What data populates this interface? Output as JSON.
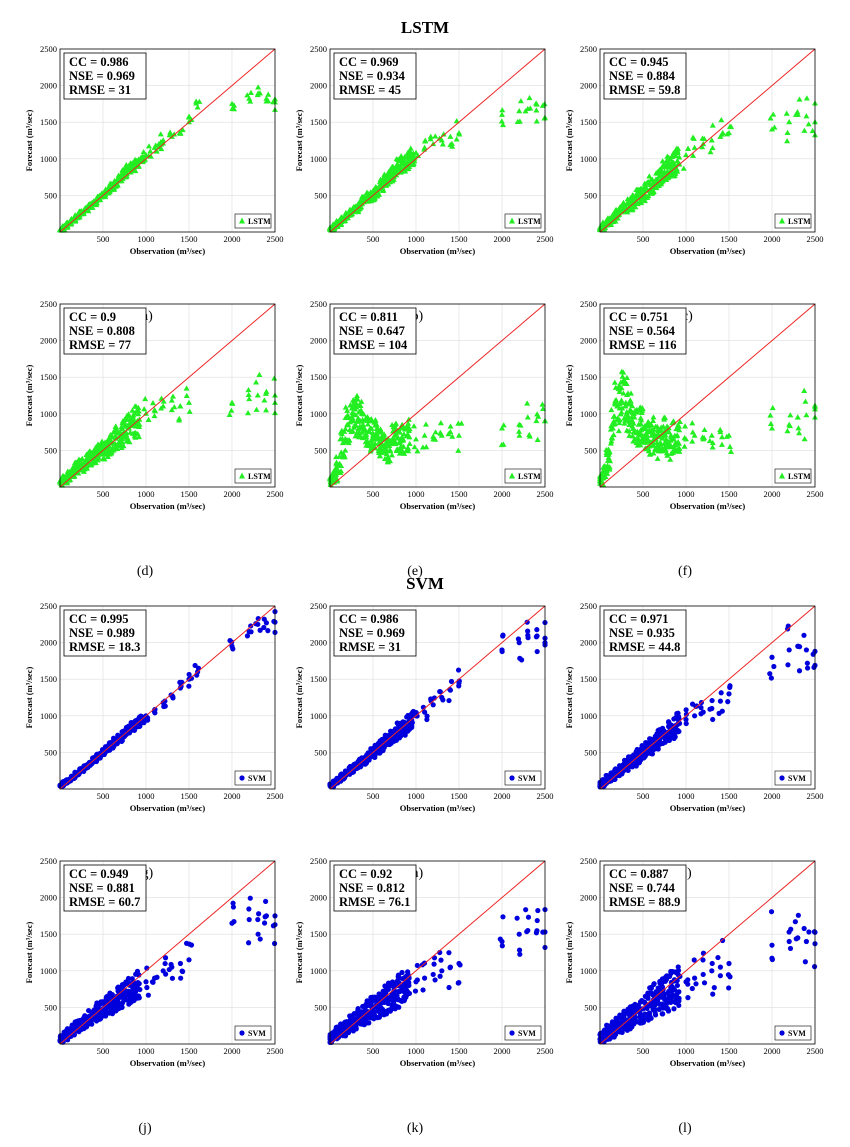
{
  "sections": [
    {
      "title": "LSTM"
    },
    {
      "title": "SVM"
    }
  ],
  "axes": {
    "xlabel": "Observation (m³/sec)",
    "ylabel": "Forecast (m³/sec)",
    "xticks": [
      "500",
      "1000",
      "1500",
      "2000",
      "2500"
    ],
    "yticks": [
      "500",
      "1000",
      "1500",
      "2000",
      "2500"
    ]
  },
  "colors": {
    "lstm": "#22ee22",
    "svm": "#0000dd",
    "line": "#ee2222",
    "grid": "#dddddd"
  },
  "chart_data": [
    {
      "type": "scatter",
      "caption": "(a)",
      "model": "LSTM",
      "legend": "LSTM",
      "legend_loc": "bottom-right",
      "marker": "triangle",
      "stats": [
        "CC = 0.986",
        "NSE = 0.969",
        "RMSE = 31"
      ],
      "xlim": [
        0,
        2500
      ],
      "ylim": [
        0,
        2500
      ],
      "grid": true,
      "series": [
        {
          "name": "LSTM",
          "x": [
            20,
            60,
            100,
            150,
            200,
            250,
            300,
            350,
            400,
            450,
            500,
            550,
            600,
            650,
            700,
            750,
            800,
            850,
            900,
            950,
            1000,
            1050,
            1100,
            1150,
            1200,
            1300,
            1400,
            1500,
            1600,
            2000,
            2200,
            2300,
            2400,
            2500
          ],
          "y": [
            30,
            70,
            110,
            160,
            210,
            260,
            310,
            360,
            400,
            460,
            500,
            560,
            620,
            660,
            740,
            800,
            860,
            880,
            950,
            980,
            1050,
            1100,
            1150,
            1200,
            1250,
            1300,
            1350,
            1500,
            1700,
            1750,
            1820,
            1870,
            1820,
            1770
          ]
        }
      ]
    },
    {
      "type": "scatter",
      "caption": "(b)",
      "model": "LSTM",
      "legend": "LSTM",
      "legend_loc": "bottom-right",
      "marker": "triangle",
      "stats": [
        "CC = 0.969",
        "NSE = 0.934",
        "RMSE = 45"
      ],
      "xlim": [
        0,
        2500
      ],
      "ylim": [
        0,
        2500
      ],
      "grid": true,
      "series": [
        {
          "name": "LSTM",
          "x": [
            20,
            60,
            100,
            150,
            200,
            250,
            300,
            350,
            400,
            450,
            500,
            550,
            600,
            650,
            700,
            750,
            800,
            850,
            900,
            950,
            1000,
            1100,
            1200,
            1300,
            1400,
            1500,
            2000,
            2200,
            2300,
            2400,
            2500
          ],
          "y": [
            40,
            80,
            120,
            170,
            220,
            270,
            320,
            360,
            420,
            470,
            500,
            560,
            640,
            700,
            760,
            800,
            880,
            920,
            960,
            1020,
            1080,
            1150,
            1200,
            1250,
            1300,
            1350,
            1600,
            1650,
            1680,
            1660,
            1560
          ]
        }
      ]
    },
    {
      "type": "scatter",
      "caption": "(c)",
      "model": "LSTM",
      "legend": "LSTM",
      "legend_loc": "bottom-right",
      "marker": "triangle",
      "stats": [
        "CC = 0.945",
        "NSE = 0.884",
        "RMSE = 59.8"
      ],
      "xlim": [
        0,
        2500
      ],
      "ylim": [
        0,
        2500
      ],
      "grid": true,
      "series": [
        {
          "name": "LSTM",
          "x": [
            20,
            60,
            100,
            150,
            200,
            250,
            300,
            350,
            400,
            450,
            500,
            550,
            600,
            650,
            700,
            750,
            800,
            850,
            900,
            1000,
            1100,
            1200,
            1300,
            1400,
            1500,
            2000,
            2200,
            2300,
            2400,
            2500
          ],
          "y": [
            50,
            90,
            140,
            190,
            240,
            290,
            330,
            380,
            420,
            480,
            520,
            570,
            640,
            700,
            760,
            820,
            880,
            920,
            970,
            1050,
            1150,
            1200,
            1250,
            1300,
            1350,
            1400,
            1500,
            1600,
            1580,
            1500
          ]
        }
      ]
    },
    {
      "type": "scatter",
      "caption": "(d)",
      "model": "LSTM",
      "legend": "LSTM",
      "legend_loc": "bottom-right",
      "marker": "triangle",
      "stats": [
        "CC = 0.9",
        "NSE = 0.808",
        "RMSE = 77"
      ],
      "xlim": [
        0,
        2500
      ],
      "ylim": [
        0,
        2500
      ],
      "grid": true,
      "series": [
        {
          "name": "LSTM",
          "x": [
            20,
            60,
            100,
            150,
            200,
            250,
            300,
            350,
            400,
            450,
            500,
            550,
            600,
            650,
            700,
            750,
            800,
            850,
            900,
            1000,
            1100,
            1200,
            1300,
            1400,
            1500,
            2000,
            2200,
            2300,
            2400,
            2500
          ],
          "y": [
            60,
            100,
            150,
            200,
            260,
            300,
            340,
            380,
            420,
            470,
            500,
            540,
            600,
            660,
            700,
            740,
            800,
            850,
            900,
            1000,
            1050,
            1100,
            1050,
            1100,
            1150,
            1150,
            1200,
            1250,
            1300,
            1250
          ]
        }
      ]
    },
    {
      "type": "scatter",
      "caption": "(e)",
      "model": "LSTM",
      "legend": "LSTM",
      "legend_loc": "bottom-right",
      "marker": "triangle",
      "stats": [
        "CC = 0.811",
        "NSE = 0.647",
        "RMSE = 104"
      ],
      "xlim": [
        0,
        2500
      ],
      "ylim": [
        0,
        2500
      ],
      "grid": true,
      "series": [
        {
          "name": "LSTM",
          "x": [
            20,
            60,
            100,
            150,
            200,
            250,
            300,
            350,
            400,
            450,
            500,
            550,
            600,
            650,
            700,
            750,
            800,
            850,
            900,
            1000,
            1100,
            1200,
            1300,
            1400,
            1500,
            2000,
            2200,
            2300,
            2400,
            2500
          ],
          "y": [
            80,
            150,
            300,
            600,
            850,
            950,
            980,
            900,
            800,
            750,
            700,
            650,
            600,
            550,
            500,
            700,
            600,
            650,
            700,
            650,
            700,
            650,
            700,
            750,
            700,
            800,
            850,
            950,
            900,
            900
          ]
        }
      ]
    },
    {
      "type": "scatter",
      "caption": "(f)",
      "model": "LSTM",
      "legend": "LSTM",
      "legend_loc": "bottom-right",
      "marker": "triangle",
      "stats": [
        "CC = 0.751",
        "NSE = 0.564",
        "RMSE = 116"
      ],
      "xlim": [
        0,
        2500
      ],
      "ylim": [
        0,
        2500
      ],
      "grid": true,
      "series": [
        {
          "name": "LSTM",
          "x": [
            20,
            60,
            100,
            150,
            200,
            250,
            300,
            350,
            400,
            450,
            500,
            550,
            600,
            650,
            700,
            750,
            800,
            850,
            900,
            1000,
            1100,
            1200,
            1300,
            1400,
            1500,
            2000,
            2200,
            2300,
            2400,
            2500
          ],
          "y": [
            80,
            200,
            400,
            800,
            1100,
            1180,
            1150,
            1050,
            950,
            850,
            800,
            750,
            700,
            650,
            600,
            700,
            600,
            650,
            700,
            650,
            700,
            650,
            700,
            750,
            700,
            800,
            850,
            950,
            980,
            950
          ]
        }
      ]
    },
    {
      "type": "scatter",
      "caption": "(g)",
      "model": "SVM",
      "legend": "SVM",
      "legend_loc": "bottom-right",
      "marker": "circle",
      "stats": [
        "CC = 0.995",
        "NSE = 0.989",
        "RMSE = 18.3"
      ],
      "xlim": [
        0,
        2500
      ],
      "ylim": [
        0,
        2500
      ],
      "grid": true,
      "series": [
        {
          "name": "SVM",
          "x": [
            20,
            60,
            100,
            150,
            200,
            250,
            300,
            350,
            400,
            450,
            500,
            550,
            600,
            650,
            700,
            750,
            800,
            850,
            900,
            950,
            1000,
            1100,
            1200,
            1300,
            1400,
            1500,
            1600,
            2000,
            2200,
            2300,
            2400,
            2500
          ],
          "y": [
            50,
            90,
            120,
            160,
            210,
            260,
            300,
            350,
            400,
            450,
            500,
            550,
            600,
            650,
            700,
            750,
            800,
            850,
            900,
            950,
            1000,
            1080,
            1180,
            1280,
            1380,
            1500,
            1600,
            1950,
            2150,
            2250,
            2270,
            2280
          ]
        }
      ]
    },
    {
      "type": "scatter",
      "caption": "(h)",
      "model": "SVM",
      "legend": "SVM",
      "legend_loc": "bottom-right",
      "marker": "circle",
      "stats": [
        "CC = 0.986",
        "NSE = 0.969",
        "RMSE = 31"
      ],
      "xlim": [
        0,
        2500
      ],
      "ylim": [
        0,
        2500
      ],
      "grid": true,
      "series": [
        {
          "name": "SVM",
          "x": [
            20,
            60,
            100,
            150,
            200,
            250,
            300,
            350,
            400,
            450,
            500,
            550,
            600,
            650,
            700,
            750,
            800,
            850,
            900,
            950,
            1000,
            1100,
            1200,
            1300,
            1400,
            1500,
            2000,
            2200,
            2300,
            2400,
            2500
          ],
          "y": [
            50,
            90,
            130,
            170,
            220,
            270,
            310,
            360,
            400,
            450,
            500,
            550,
            600,
            650,
            700,
            740,
            800,
            840,
            900,
            940,
            1000,
            1050,
            1150,
            1250,
            1350,
            1450,
            1900,
            2000,
            2100,
            2080,
            2060
          ]
        }
      ]
    },
    {
      "type": "scatter",
      "caption": "(i)",
      "model": "SVM",
      "legend": "SVM",
      "legend_loc": "bottom-right",
      "marker": "circle",
      "stats": [
        "CC = 0.971",
        "NSE = 0.935",
        "RMSE = 44.8"
      ],
      "xlim": [
        0,
        2500
      ],
      "ylim": [
        0,
        2500
      ],
      "grid": true,
      "series": [
        {
          "name": "SVM",
          "x": [
            20,
            60,
            100,
            150,
            200,
            250,
            300,
            350,
            400,
            450,
            500,
            550,
            600,
            650,
            700,
            750,
            800,
            850,
            900,
            1000,
            1100,
            1200,
            1300,
            1400,
            1500,
            2000,
            2200,
            2300,
            2400,
            2500
          ],
          "y": [
            60,
            100,
            140,
            180,
            230,
            270,
            320,
            360,
            400,
            450,
            500,
            540,
            590,
            640,
            690,
            730,
            780,
            830,
            880,
            950,
            1000,
            1050,
            1100,
            1200,
            1300,
            1800,
            1900,
            1950,
            1900,
            1880
          ]
        }
      ]
    },
    {
      "type": "scatter",
      "caption": "(j)",
      "model": "SVM",
      "legend": "SVM",
      "legend_loc": "bottom-right",
      "marker": "circle",
      "stats": [
        "CC = 0.949",
        "NSE = 0.881",
        "RMSE = 60.7"
      ],
      "xlim": [
        0,
        2500
      ],
      "ylim": [
        0,
        2500
      ],
      "grid": true,
      "series": [
        {
          "name": "SVM",
          "x": [
            20,
            60,
            100,
            150,
            200,
            250,
            300,
            350,
            400,
            450,
            500,
            550,
            600,
            650,
            700,
            750,
            800,
            850,
            900,
            1000,
            1100,
            1200,
            1300,
            1400,
            1500,
            2000,
            2200,
            2300,
            2400,
            2500
          ],
          "y": [
            70,
            110,
            150,
            190,
            240,
            280,
            320,
            360,
            400,
            440,
            480,
            520,
            560,
            600,
            640,
            680,
            720,
            760,
            800,
            850,
            900,
            1000,
            1050,
            1100,
            1150,
            1650,
            1700,
            1700,
            1750,
            1750
          ]
        }
      ]
    },
    {
      "type": "scatter",
      "caption": "(k)",
      "model": "SVM",
      "legend": "SVM",
      "legend_loc": "bottom-right",
      "marker": "circle",
      "stats": [
        "CC = 0.92",
        "NSE = 0.812",
        "RMSE = 76.1"
      ],
      "xlim": [
        0,
        2500
      ],
      "ylim": [
        0,
        2500
      ],
      "grid": true,
      "series": [
        {
          "name": "SVM",
          "x": [
            20,
            60,
            100,
            150,
            200,
            250,
            300,
            350,
            400,
            450,
            500,
            550,
            600,
            650,
            700,
            750,
            800,
            850,
            900,
            1000,
            1100,
            1200,
            1300,
            1400,
            1500,
            2000,
            2200,
            2300,
            2400,
            2500
          ],
          "y": [
            80,
            120,
            160,
            200,
            240,
            280,
            320,
            360,
            400,
            440,
            480,
            520,
            560,
            600,
            640,
            680,
            720,
            760,
            800,
            850,
            900,
            950,
            1000,
            1050,
            1100,
            1400,
            1500,
            1550,
            1520,
            1530
          ]
        }
      ]
    },
    {
      "type": "scatter",
      "caption": "(l)",
      "model": "SVM",
      "legend": "SVM",
      "legend_loc": "bottom-right",
      "marker": "circle",
      "stats": [
        "CC = 0.887",
        "NSE = 0.744",
        "RMSE = 88.9"
      ],
      "xlim": [
        0,
        2500
      ],
      "ylim": [
        0,
        2500
      ],
      "grid": true,
      "series": [
        {
          "name": "SVM",
          "x": [
            20,
            60,
            100,
            150,
            200,
            250,
            300,
            350,
            400,
            450,
            500,
            550,
            600,
            650,
            700,
            750,
            800,
            850,
            900,
            1000,
            1100,
            1200,
            1300,
            1400,
            1500,
            2000,
            2200,
            2300,
            2400,
            2500
          ],
          "y": [
            80,
            120,
            160,
            200,
            240,
            280,
            320,
            360,
            400,
            440,
            480,
            520,
            560,
            600,
            640,
            680,
            720,
            760,
            800,
            850,
            900,
            950,
            1000,
            1050,
            1100,
            1350,
            1400,
            1450,
            1400,
            1370
          ]
        }
      ]
    }
  ]
}
